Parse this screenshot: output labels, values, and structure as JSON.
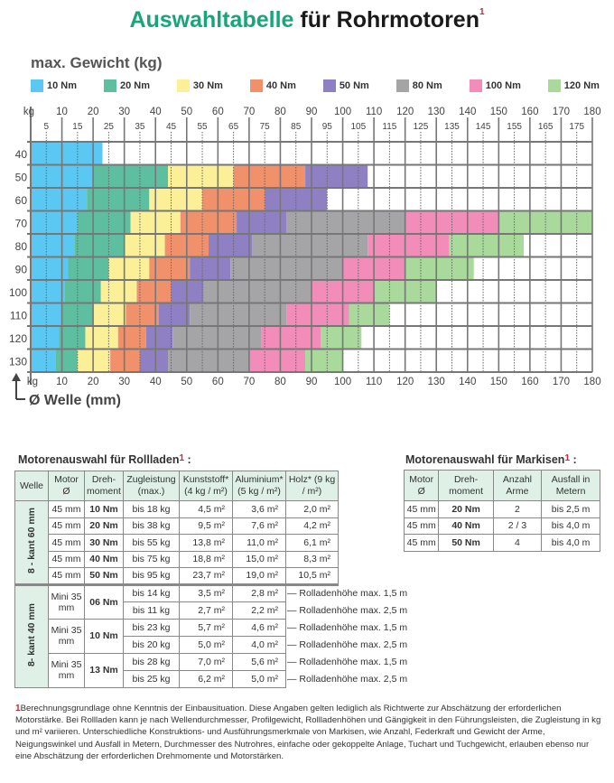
{
  "title": {
    "part1": "Auswahltabelle",
    "part2": "für Rohrmotoren",
    "footnote_mark": "1"
  },
  "colors": {
    "title_green": "#17a57a",
    "footnote_red": "#d0252f",
    "header_bg": "#dff0e6"
  },
  "chart_data": {
    "type": "bar",
    "orientation": "horizontal-stacked-ranges",
    "title": "max. Gewicht (kg)",
    "ylabel": "Ø Welle (mm)",
    "xlabel_unit": "kg",
    "xlim": [
      0,
      180
    ],
    "x_major_ticks": [
      10,
      20,
      30,
      40,
      50,
      60,
      70,
      80,
      90,
      100,
      110,
      120,
      130,
      140,
      150,
      160,
      170,
      180
    ],
    "x_minor_ticks": [
      5,
      15,
      25,
      35,
      45,
      55,
      65,
      75,
      85,
      95,
      105,
      115,
      125,
      135,
      145,
      155,
      165,
      175
    ],
    "grid": true,
    "legend_position": "top",
    "categories": [
      40,
      50,
      60,
      70,
      80,
      90,
      100,
      110,
      120,
      130
    ],
    "series": [
      {
        "name": "10 Nm",
        "color": "#5bc8f3"
      },
      {
        "name": "20 Nm",
        "color": "#5dbf9f"
      },
      {
        "name": "30 Nm",
        "color": "#fbf098"
      },
      {
        "name": "40 Nm",
        "color": "#f0916b"
      },
      {
        "name": "50 Nm",
        "color": "#8e80c3"
      },
      {
        "name": "80 Nm",
        "color": "#a5a5a8"
      },
      {
        "name": "100 Nm",
        "color": "#f28dba"
      },
      {
        "name": "120 Nm",
        "color": "#a9d99b"
      }
    ],
    "max_weight_kg_by_shaft": [
      [
        23,
        null,
        null,
        null,
        null,
        null,
        null,
        null
      ],
      [
        20,
        44,
        65,
        88,
        108,
        null,
        null,
        null
      ],
      [
        18,
        38,
        55,
        75,
        95,
        null,
        null,
        null
      ],
      [
        15,
        32,
        48,
        66,
        82,
        120,
        150,
        180
      ],
      [
        14,
        30,
        43,
        57,
        71,
        108,
        134,
        158
      ],
      [
        12,
        25,
        38,
        51,
        64,
        100,
        120,
        142
      ],
      [
        11,
        22.5,
        34,
        45,
        55.5,
        90,
        110,
        130
      ],
      [
        10,
        20,
        30.5,
        41,
        51,
        82,
        102,
        115
      ],
      [
        9,
        17.5,
        28,
        37,
        45.5,
        74,
        93,
        106
      ],
      [
        8,
        15,
        25.5,
        35,
        44,
        70,
        88,
        100
      ]
    ]
  },
  "rollladen": {
    "title": "Motorenauswahl für Rollladen",
    "headers": [
      "Welle",
      "Motor Ø",
      "Dreh- moment",
      "Zugleistung (max.)",
      "Kunststoff* (4 kg / m²)",
      "Aluminium* (5 kg / m²)",
      "Holz* (9 kg / m²)"
    ],
    "group1_label": "8 - kant 60 mm",
    "group1_rows": [
      [
        "45 mm",
        "10 Nm",
        "bis 18 kg",
        "4,5 m²",
        "3,6 m²",
        "2,0 m²"
      ],
      [
        "45 mm",
        "20 Nm",
        "bis 38 kg",
        "9,5 m²",
        "7,6 m²",
        "4,2 m²"
      ],
      [
        "45 mm",
        "30 Nm",
        "bis 55 kg",
        "13,8 m²",
        "11,0 m²",
        "6,1 m²"
      ],
      [
        "45 mm",
        "40 Nm",
        "bis 75 kg",
        "18,8 m²",
        "15,0 m²",
        "8,3 m²"
      ],
      [
        "45 mm",
        "50 Nm",
        "bis 95 kg",
        "23,7 m²",
        "19,0 m²",
        "10,5 m²"
      ]
    ],
    "group2_label": "8- kant 40 mm",
    "group2_blocks": [
      {
        "motor": "Mini 35 mm",
        "torque": "06 Nm",
        "rows": [
          [
            "bis 14 kg",
            "3,5 m²",
            "2,8 m²",
            "Rolladenhöhe max. 1,5 m"
          ],
          [
            "bis 11 kg",
            "2,7 m²",
            "2,2 m²",
            "Rolladenhöhe max. 2,5 m"
          ]
        ]
      },
      {
        "motor": "Mini 35 mm",
        "torque": "10 Nm",
        "rows": [
          [
            "bis 23 kg",
            "5,7 m²",
            "4,6 m²",
            "Rolladenhöhe max. 1,5 m"
          ],
          [
            "bis 20 kg",
            "5,0 m²",
            "4,0 m²",
            "Rolladenhöhe max. 2,5 m"
          ]
        ]
      },
      {
        "motor": "Mini 35 mm",
        "torque": "13 Nm",
        "rows": [
          [
            "bis 28 kg",
            "7,0 m²",
            "5,6 m²",
            "Rolladenhöhe max. 1,5 m"
          ],
          [
            "bis 25 kg",
            "6,2 m²",
            "5,0 m²",
            "Rolladenhöhe max. 2,5 m"
          ]
        ]
      }
    ]
  },
  "markisen": {
    "title": "Motorenauswahl für Markisen",
    "headers": [
      "Motor Ø",
      "Dreh- moment",
      "Anzahl Arme",
      "Ausfall in Metern"
    ],
    "rows": [
      [
        "45 mm",
        "20 Nm",
        "2",
        "bis 2,5 m"
      ],
      [
        "45 mm",
        "40 Nm",
        "2 / 3",
        "bis 4,0 m"
      ],
      [
        "45 mm",
        "50 Nm",
        "4",
        "bis 4,0 m"
      ]
    ]
  },
  "footnote": {
    "mark": "1",
    "text": "Berechnungsgrundlage ohne Kenntnis der Einbausituation. Diese Angaben gelten lediglich als Richtwerte zur Abschätzung der erforderlichen Motorstärke. Bei Rollladen kann je nach Wellendurchmesser, Profilgewicht, Rollladenhöhen und Gängigkeit in den Führungsleisten, die Zugleistung in kg und m² variieren. Unterschiedliche Konstruktions- und Ausführungsmerkmale von Markisen, wie Anzahl, Federkraft und Gewicht der Arme, Neigungswinkel und Ausfall in Metern, Durchmesser des Nutrohres, einfache oder gekoppelte Anlage, Tuchart und Tuchgewicht, erlauben ebenso nur eine Abschätzung der erforderlichen Drehmomente und Motorstärken."
  }
}
